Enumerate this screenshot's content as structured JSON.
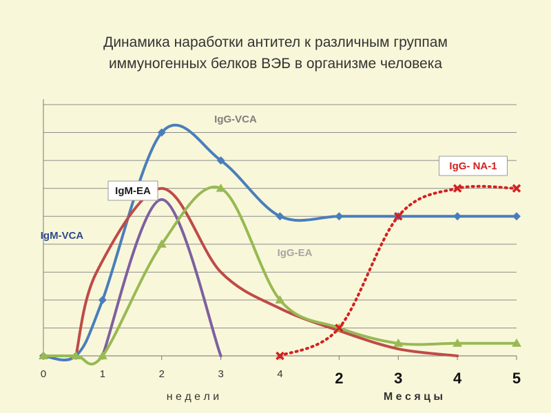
{
  "chart_data": {
    "type": "line",
    "title": [
      "Динамика наработки антител к различным группам",
      "иммуногенных белков ВЭБ в организме человека"
    ],
    "x_ticks": [
      {
        "x": 0,
        "label": "0",
        "style": "small"
      },
      {
        "x": 1,
        "label": "1",
        "style": "small"
      },
      {
        "x": 2,
        "label": "2",
        "style": "small"
      },
      {
        "x": 3,
        "label": "3",
        "style": "small"
      },
      {
        "x": 4,
        "label": "4",
        "style": "small"
      },
      {
        "x": 5,
        "label": "2",
        "style": "big"
      },
      {
        "x": 6,
        "label": "3",
        "style": "big"
      },
      {
        "x": 7,
        "label": "4",
        "style": "big"
      },
      {
        "x": 8,
        "label": "5",
        "style": "big"
      }
    ],
    "xlabel_weeks": "н е д е л и",
    "xlabel_months": "М е с я ц ы",
    "x_range": [
      0,
      8
    ],
    "ylim": [
      0,
      9
    ],
    "grid": "horizontal",
    "series": [
      {
        "name": "IgG-VCA",
        "color": "#4a7ebb",
        "marker": "diamond",
        "dash": false,
        "points": [
          [
            0,
            0
          ],
          [
            0.55,
            0
          ],
          [
            1,
            2
          ],
          [
            2,
            8
          ],
          [
            3,
            7
          ],
          [
            4,
            5
          ],
          [
            5,
            5
          ],
          [
            6,
            5
          ],
          [
            7,
            5
          ],
          [
            8,
            5
          ]
        ],
        "markers": [
          [
            0,
            0
          ],
          [
            0.55,
            0
          ],
          [
            1,
            2
          ],
          [
            2,
            8
          ],
          [
            3,
            7
          ],
          [
            4,
            5
          ],
          [
            5,
            5
          ],
          [
            6,
            5
          ],
          [
            7,
            5
          ],
          [
            8,
            5
          ]
        ]
      },
      {
        "name": "IgM-VCA",
        "color": "#be4b48",
        "marker": "none",
        "dash": false,
        "points": [
          [
            0.55,
            0
          ],
          [
            0.9,
            3
          ],
          [
            2,
            6
          ],
          [
            3,
            3
          ],
          [
            4,
            1.7
          ],
          [
            5,
            0.9
          ],
          [
            6,
            0.25
          ],
          [
            7,
            0
          ]
        ],
        "markers": []
      },
      {
        "name": "IgM-EA",
        "color": "#7d60a0",
        "marker": "none",
        "dash": false,
        "points": [
          [
            1,
            0
          ],
          [
            2,
            5.6
          ],
          [
            3,
            0
          ]
        ],
        "markers": []
      },
      {
        "name": "IgG-EA",
        "color": "#98b954",
        "marker": "triangle",
        "dash": false,
        "points": [
          [
            0,
            0
          ],
          [
            0.55,
            0
          ],
          [
            1,
            0
          ],
          [
            2,
            4
          ],
          [
            3,
            6
          ],
          [
            4,
            2
          ],
          [
            5,
            1
          ],
          [
            6,
            0.45
          ],
          [
            7,
            0.45
          ],
          [
            8,
            0.45
          ]
        ],
        "markers": [
          [
            0,
            0
          ],
          [
            0.55,
            0
          ],
          [
            1,
            0
          ],
          [
            2,
            4
          ],
          [
            3,
            6
          ],
          [
            4,
            2
          ],
          [
            5,
            1
          ],
          [
            6,
            0.45
          ],
          [
            7,
            0.45
          ],
          [
            8,
            0.45
          ]
        ]
      },
      {
        "name": "IgG- NA-1",
        "color": "#d42020",
        "marker": "x",
        "dash": true,
        "points": [
          [
            4,
            0
          ],
          [
            5,
            1
          ],
          [
            6,
            5
          ],
          [
            7,
            6
          ],
          [
            8,
            6
          ]
        ],
        "markers": [
          [
            4,
            0
          ],
          [
            5,
            1
          ],
          [
            6,
            5
          ],
          [
            7,
            6
          ],
          [
            8,
            6
          ]
        ]
      }
    ],
    "labels": [
      {
        "text": "IgG-VCA",
        "color": "#7f7f7f",
        "boxed": false
      },
      {
        "text": "IgG- NA-1",
        "color": "#d42020",
        "boxed": true
      },
      {
        "text": "IgM-EA",
        "color": "#1a1a1a",
        "boxed": true
      },
      {
        "text": "IgM-VCA",
        "color": "#2e4b8f",
        "boxed": false
      },
      {
        "text": "IgG-EA",
        "color": "#a6a6a6",
        "boxed": false
      }
    ]
  }
}
